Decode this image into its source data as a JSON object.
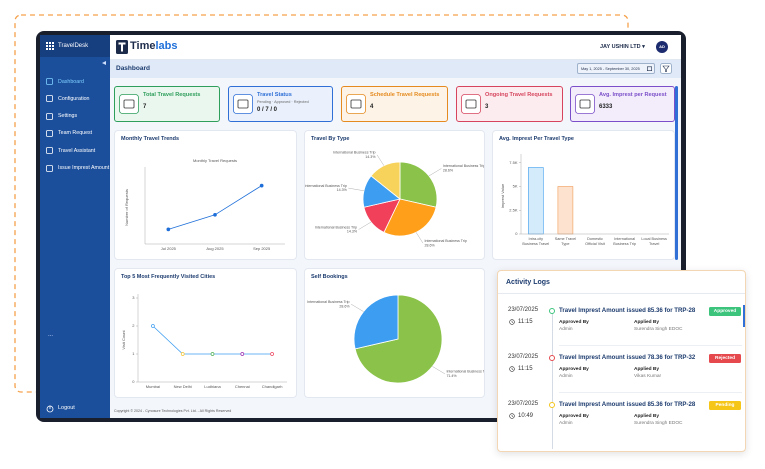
{
  "sidebar": {
    "brand": "TravelDesk",
    "menu": [
      "Dashboard",
      "Configuration",
      "Settings",
      "Team Request",
      "Travel Assistant",
      "Issue Imprest Amount"
    ],
    "more": "...",
    "logout": "Logout"
  },
  "header": {
    "logo_part1": "Time",
    "logo_part2": "labs",
    "company": "JAY USHIN LTD",
    "avatar": "AD"
  },
  "toolbar": {
    "title": "Dashboard",
    "date_range": "May 1, 2025 - September 30, 2025"
  },
  "cards": [
    {
      "title": "Total Travel Requests",
      "value": 7
    },
    {
      "title": "Travel Status",
      "subtitle": "Pending · Approved · Rejected",
      "value": "0 / 7 / 0"
    },
    {
      "title": "Schedule Travel Requests",
      "value": 4
    },
    {
      "title": "Ongoing Travel Requests",
      "value": 3
    },
    {
      "title": "Avg. Imprest per Request",
      "value": 6333
    }
  ],
  "chart_data": [
    {
      "type": "line",
      "title": "Monthly Travel Trends",
      "subtitle": "Monthly Travel Requests",
      "y_label": "Number of Requests",
      "categories": [
        "Jul 2025",
        "Aug 2025",
        "Sep 2025"
      ],
      "values": [
        1,
        2,
        4
      ],
      "color": "#1e6fd9",
      "ylim": [
        0,
        5
      ]
    },
    {
      "type": "pie",
      "title": "Travel By Type",
      "categories": [
        "International Business Trip",
        "International Business Trip",
        "International Business Trip",
        "International Business Trip",
        "International Business Trip"
      ],
      "values": [
        28.6,
        28.6,
        14.3,
        14.3,
        14.3
      ],
      "value_labels": [
        "28.6%",
        "28.6%",
        "14.3%",
        "14.3%",
        "14.3%"
      ],
      "colors": [
        "#8bc34a",
        "#ff9f1a",
        "#f0405a",
        "#3d9df0",
        "#f7d35c"
      ]
    },
    {
      "type": "bar",
      "title": "Avg. Imprest Per Travel Type",
      "y_label": "Imprest Value",
      "categories": [
        "Intra-city Business Travel",
        "Same Travel Type",
        "Domestic Official Visit",
        "International Business Trip",
        "Local Business Travel"
      ],
      "values": [
        7000,
        5000,
        0,
        0,
        0
      ],
      "colors": [
        "#d4ebfb",
        "#fde3cf",
        "#d4ebfb",
        "#d4ebfb",
        "#d4ebfb"
      ],
      "border_colors": [
        "#3d9df0",
        "#f29a55",
        "#3d9df0",
        "#3d9df0",
        "#3d9df0"
      ],
      "ylim": [
        0,
        8000
      ],
      "yticks": [
        0,
        {
          "value": 2500,
          "label": "2.5K"
        },
        {
          "value": 5000,
          "label": "5K"
        },
        {
          "value": 7500,
          "label": "7.5K"
        }
      ]
    },
    {
      "type": "line",
      "title": "Top 5 Most Frequently Visited Cities",
      "y_label": "Visit Count",
      "categories": [
        "Mumbai",
        "New Delhi",
        "Ludhiana",
        "Chennai",
        "Chandigarh"
      ],
      "values": [
        2,
        1,
        1,
        1,
        1
      ],
      "color": "#3d9df0",
      "point_colors": [
        "#3d9df0",
        "#f7c52d",
        "#4caf50",
        "#9c27b0",
        "#f0405a"
      ],
      "ylim": [
        0,
        3
      ],
      "yticks": [
        0,
        1,
        2,
        3
      ]
    },
    {
      "type": "pie",
      "title": "Self Bookings",
      "categories": [
        "International Business Trip",
        "International Business Trip"
      ],
      "values": [
        71.4,
        28.6
      ],
      "value_labels": [
        "71.4%",
        "28.6%"
      ],
      "colors": [
        "#8bc34a",
        "#3d9df0"
      ]
    }
  ],
  "activity_logs": {
    "title": "Activity Logs",
    "entries": [
      {
        "date": "23/07/2025",
        "time": "11:15",
        "message": "Travel Imprest Amount issued 85.36 for TRP-28",
        "status": "Approved",
        "approved_by_label": "Approved By",
        "approved_by": "Admin",
        "applied_by_label": "Applied By",
        "applied_by": "Surendra Singh EDOC"
      },
      {
        "date": "23/07/2025",
        "time": "11:15",
        "message": "Travel Imprest Amount issued 78.36 for TRP-32",
        "status": "Rejected",
        "approved_by_label": "Approved By",
        "approved_by": "Admin",
        "applied_by_label": "Applied By",
        "applied_by": "Vikas Kumar"
      },
      {
        "date": "23/07/2025",
        "time": "10:49",
        "message": "Travel Imprest Amount issued 85.36 for TRP-28",
        "status": "Pending",
        "approved_by_label": "Approved By",
        "approved_by": "Admin",
        "applied_by_label": "Applied By",
        "applied_by": "Surendra Singh EDOC"
      }
    ]
  },
  "footer": "Copyright © 2024 - Cynosure Technologies Pvt. Ltd. - All Rights Reserved"
}
